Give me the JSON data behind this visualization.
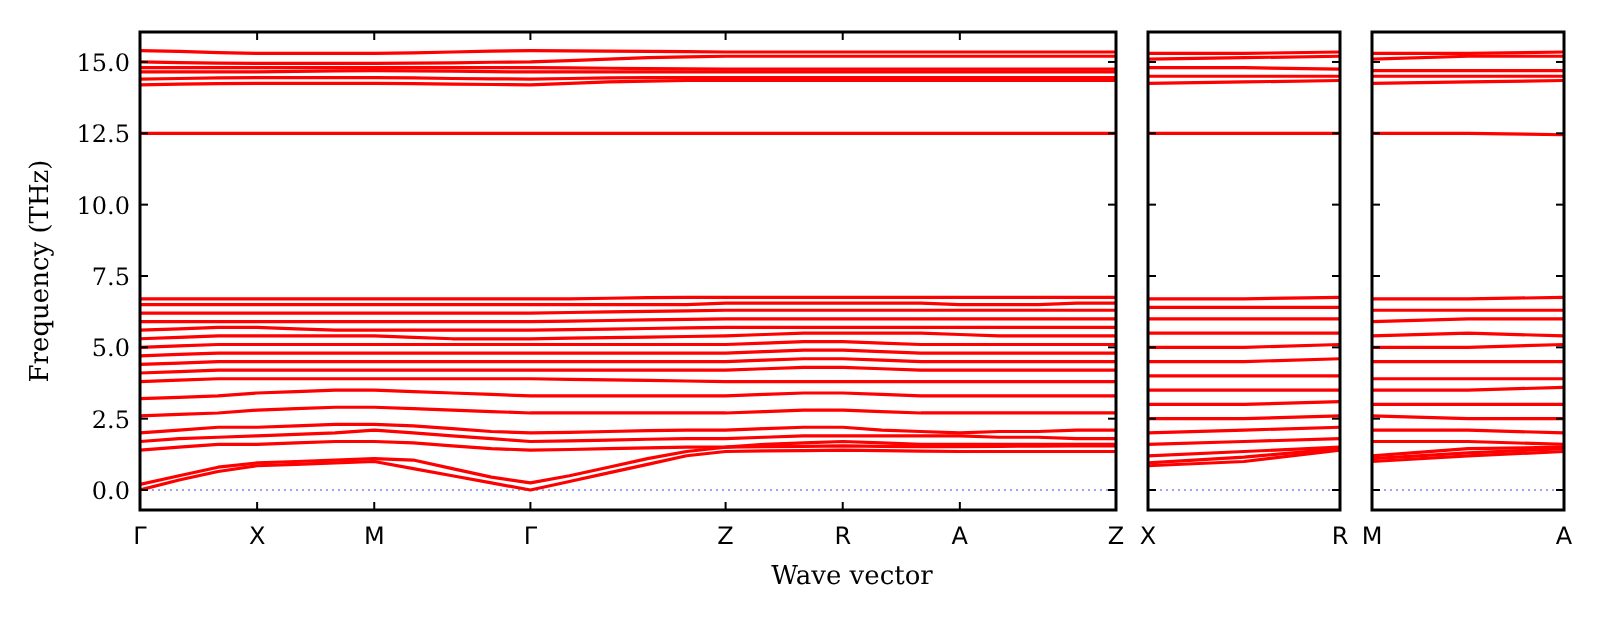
{
  "chart_data": [
    {
      "type": "line",
      "xlabel": "Wave vector",
      "ylabel": "Frequency (THz)",
      "categories": [
        "Γ",
        null,
        null,
        "X",
        null,
        null,
        "M",
        null,
        null,
        null,
        "Γ",
        null,
        null,
        null,
        null,
        "Z",
        null,
        null,
        "R",
        null,
        null,
        "A",
        null,
        null,
        null,
        "Z"
      ],
      "ylim": [
        -0.7,
        16.05
      ],
      "yticks": [
        {
          "value": 0,
          "label": "0.0"
        },
        {
          "value": 2.5,
          "label": "2.5"
        },
        {
          "value": 5,
          "label": "5.0"
        },
        {
          "value": 7.5,
          "label": "7.5"
        },
        {
          "value": 10,
          "label": "10.0"
        },
        {
          "value": 12.5,
          "label": "12.5"
        },
        {
          "value": 15,
          "label": "15.0"
        }
      ],
      "grid": false,
      "line_style": "solid",
      "marker": "none",
      "ref_lines": [
        {
          "axis": "y",
          "value": 0,
          "color": "#8080ff",
          "line_style": "dotted"
        }
      ],
      "series": [
        {
          "color": "#ff0000",
          "values": [
            0,
            0.35,
            0.65,
            0.85,
            0.9,
            0.95,
            1.0,
            0.75,
            0.5,
            0.25,
            0,
            0.3,
            0.6,
            0.9,
            1.2,
            1.35,
            1.37,
            1.38,
            1.4,
            1.38,
            1.36,
            1.35,
            1.35,
            1.35,
            1.35,
            1.35
          ]
        },
        {
          "color": "#ff0000",
          "values": [
            0.2,
            0.5,
            0.8,
            0.95,
            1.0,
            1.05,
            1.1,
            1.05,
            0.75,
            0.45,
            0.25,
            0.5,
            0.8,
            1.1,
            1.35,
            1.5,
            1.52,
            1.53,
            1.55,
            1.53,
            1.52,
            1.52,
            1.53,
            1.54,
            1.55,
            1.55
          ]
        },
        {
          "color": "#ff0000",
          "values": [
            1.4,
            1.5,
            1.6,
            1.6,
            1.65,
            1.7,
            1.7,
            1.65,
            1.55,
            1.45,
            1.4,
            1.42,
            1.45,
            1.48,
            1.5,
            1.5,
            1.6,
            1.65,
            1.7,
            1.65,
            1.6,
            1.6,
            1.6,
            1.6,
            1.6,
            1.6
          ]
        },
        {
          "color": "#ff0000",
          "values": [
            1.7,
            1.8,
            1.85,
            1.9,
            1.95,
            2.0,
            2.1,
            2.0,
            1.9,
            1.8,
            1.7,
            1.72,
            1.75,
            1.78,
            1.8,
            1.8,
            1.85,
            1.9,
            1.9,
            1.9,
            1.9,
            1.9,
            1.85,
            1.85,
            1.8,
            1.8
          ]
        },
        {
          "color": "#ff0000",
          "values": [
            2.0,
            2.1,
            2.2,
            2.2,
            2.25,
            2.3,
            2.3,
            2.25,
            2.15,
            2.05,
            2.0,
            2.02,
            2.05,
            2.08,
            2.1,
            2.1,
            2.15,
            2.2,
            2.2,
            2.1,
            2.05,
            2.0,
            2.05,
            2.05,
            2.1,
            2.1
          ]
        },
        {
          "color": "#ff0000",
          "values": [
            2.6,
            2.65,
            2.7,
            2.8,
            2.85,
            2.9,
            2.9,
            2.85,
            2.8,
            2.75,
            2.7,
            2.7,
            2.7,
            2.7,
            2.7,
            2.7,
            2.75,
            2.8,
            2.8,
            2.75,
            2.7,
            2.7,
            2.7,
            2.7,
            2.7,
            2.7
          ]
        },
        {
          "color": "#ff0000",
          "values": [
            3.2,
            3.25,
            3.3,
            3.4,
            3.45,
            3.5,
            3.5,
            3.45,
            3.4,
            3.35,
            3.3,
            3.3,
            3.3,
            3.3,
            3.3,
            3.3,
            3.35,
            3.4,
            3.4,
            3.35,
            3.3,
            3.3,
            3.3,
            3.3,
            3.3,
            3.3
          ]
        },
        {
          "color": "#ff0000",
          "values": [
            3.8,
            3.85,
            3.9,
            3.9,
            3.9,
            3.9,
            3.9,
            3.9,
            3.9,
            3.9,
            3.9,
            3.88,
            3.86,
            3.84,
            3.82,
            3.8,
            3.8,
            3.8,
            3.8,
            3.8,
            3.8,
            3.8,
            3.8,
            3.8,
            3.8,
            3.8
          ]
        },
        {
          "color": "#ff0000",
          "values": [
            4.1,
            4.15,
            4.2,
            4.2,
            4.2,
            4.2,
            4.2,
            4.2,
            4.2,
            4.2,
            4.2,
            4.2,
            4.2,
            4.2,
            4.2,
            4.2,
            4.25,
            4.3,
            4.3,
            4.25,
            4.2,
            4.2,
            4.2,
            4.2,
            4.2,
            4.2
          ]
        },
        {
          "color": "#ff0000",
          "values": [
            4.4,
            4.45,
            4.5,
            4.5,
            4.5,
            4.5,
            4.5,
            4.5,
            4.5,
            4.5,
            4.5,
            4.5,
            4.5,
            4.5,
            4.5,
            4.5,
            4.55,
            4.6,
            4.6,
            4.55,
            4.5,
            4.5,
            4.5,
            4.5,
            4.5,
            4.5
          ]
        },
        {
          "color": "#ff0000",
          "values": [
            4.7,
            4.75,
            4.8,
            4.8,
            4.8,
            4.8,
            4.8,
            4.8,
            4.8,
            4.8,
            4.8,
            4.8,
            4.8,
            4.8,
            4.8,
            4.8,
            4.85,
            4.9,
            4.9,
            4.85,
            4.8,
            4.8,
            4.8,
            4.8,
            4.8,
            4.8
          ]
        },
        {
          "color": "#ff0000",
          "values": [
            5.0,
            5.05,
            5.1,
            5.1,
            5.1,
            5.1,
            5.1,
            5.1,
            5.1,
            5.1,
            5.1,
            5.1,
            5.1,
            5.1,
            5.1,
            5.1,
            5.15,
            5.2,
            5.2,
            5.15,
            5.1,
            5.1,
            5.1,
            5.1,
            5.1,
            5.1
          ]
        },
        {
          "color": "#ff0000",
          "values": [
            5.3,
            5.35,
            5.4,
            5.4,
            5.4,
            5.4,
            5.4,
            5.35,
            5.3,
            5.3,
            5.3,
            5.32,
            5.34,
            5.36,
            5.38,
            5.4,
            5.45,
            5.5,
            5.5,
            5.5,
            5.5,
            5.45,
            5.4,
            5.4,
            5.4,
            5.4
          ]
        },
        {
          "color": "#ff0000",
          "values": [
            5.6,
            5.65,
            5.7,
            5.7,
            5.65,
            5.6,
            5.6,
            5.6,
            5.6,
            5.6,
            5.6,
            5.62,
            5.64,
            5.66,
            5.68,
            5.7,
            5.7,
            5.7,
            5.7,
            5.7,
            5.7,
            5.7,
            5.7,
            5.7,
            5.7,
            5.7
          ]
        },
        {
          "color": "#ff0000",
          "values": [
            5.9,
            5.9,
            5.9,
            5.9,
            5.9,
            5.9,
            5.9,
            5.9,
            5.9,
            5.9,
            5.9,
            5.92,
            5.94,
            5.96,
            5.98,
            6.0,
            6.0,
            6.0,
            6.0,
            6.0,
            6.0,
            6.0,
            6.0,
            6.0,
            6.0,
            6.0
          ]
        },
        {
          "color": "#ff0000",
          "values": [
            6.2,
            6.2,
            6.2,
            6.2,
            6.2,
            6.2,
            6.2,
            6.2,
            6.2,
            6.2,
            6.2,
            6.22,
            6.24,
            6.26,
            6.28,
            6.3,
            6.3,
            6.3,
            6.3,
            6.3,
            6.3,
            6.3,
            6.3,
            6.3,
            6.3,
            6.3
          ]
        },
        {
          "color": "#ff0000",
          "values": [
            6.5,
            6.5,
            6.5,
            6.5,
            6.5,
            6.5,
            6.5,
            6.5,
            6.5,
            6.5,
            6.5,
            6.5,
            6.5,
            6.5,
            6.5,
            6.55,
            6.55,
            6.55,
            6.55,
            6.55,
            6.55,
            6.5,
            6.5,
            6.5,
            6.55,
            6.55
          ]
        },
        {
          "color": "#ff0000",
          "values": [
            6.7,
            6.7,
            6.7,
            6.7,
            6.7,
            6.7,
            6.7,
            6.7,
            6.7,
            6.7,
            6.7,
            6.7,
            6.72,
            6.74,
            6.75,
            6.75,
            6.75,
            6.75,
            6.75,
            6.75,
            6.75,
            6.75,
            6.75,
            6.75,
            6.75,
            6.75
          ]
        },
        {
          "color": "#ff0000",
          "values": [
            12.5,
            12.5,
            12.5,
            12.5,
            12.5,
            12.5,
            12.5,
            12.5,
            12.5,
            12.5,
            12.5,
            12.5,
            12.5,
            12.5,
            12.5,
            12.5,
            12.5,
            12.5,
            12.5,
            12.5,
            12.5,
            12.5,
            12.5,
            12.5,
            12.5,
            12.5
          ]
        },
        {
          "color": "#ff0000",
          "values": [
            14.2,
            14.22,
            14.24,
            14.25,
            14.25,
            14.25,
            14.25,
            14.24,
            14.22,
            14.21,
            14.2,
            14.25,
            14.3,
            14.33,
            14.35,
            14.35,
            14.35,
            14.35,
            14.35,
            14.35,
            14.35,
            14.35,
            14.35,
            14.35,
            14.35,
            14.35
          ]
        },
        {
          "color": "#ff0000",
          "values": [
            14.4,
            14.42,
            14.44,
            14.45,
            14.45,
            14.45,
            14.45,
            14.44,
            14.42,
            14.41,
            14.4,
            14.42,
            14.44,
            14.45,
            14.45,
            14.45,
            14.45,
            14.45,
            14.45,
            14.45,
            14.45,
            14.45,
            14.45,
            14.45,
            14.45,
            14.45
          ]
        },
        {
          "color": "#ff0000",
          "values": [
            14.65,
            14.65,
            14.65,
            14.65,
            14.67,
            14.69,
            14.7,
            14.69,
            14.68,
            14.66,
            14.65,
            14.65,
            14.65,
            14.65,
            14.65,
            14.65,
            14.65,
            14.65,
            14.65,
            14.65,
            14.65,
            14.65,
            14.65,
            14.65,
            14.65,
            14.65
          ]
        },
        {
          "color": "#ff0000",
          "values": [
            14.8,
            14.8,
            14.8,
            14.8,
            14.8,
            14.8,
            14.8,
            14.8,
            14.8,
            14.8,
            14.8,
            14.79,
            14.78,
            14.77,
            14.76,
            14.75,
            14.75,
            14.75,
            14.75,
            14.75,
            14.75,
            14.75,
            14.75,
            14.75,
            14.75,
            14.75
          ]
        },
        {
          "color": "#ff0000",
          "values": [
            15.0,
            14.98,
            14.96,
            14.95,
            14.95,
            14.95,
            14.95,
            14.96,
            14.97,
            14.99,
            15.0,
            15.05,
            15.1,
            15.15,
            15.18,
            15.2,
            15.2,
            15.2,
            15.2,
            15.2,
            15.2,
            15.2,
            15.2,
            15.2,
            15.2,
            15.2
          ]
        },
        {
          "color": "#ff0000",
          "values": [
            15.4,
            15.37,
            15.33,
            15.3,
            15.3,
            15.3,
            15.3,
            15.32,
            15.35,
            15.38,
            15.4,
            15.39,
            15.38,
            15.37,
            15.36,
            15.35,
            15.35,
            15.35,
            15.35,
            15.35,
            15.35,
            15.35,
            15.35,
            15.35,
            15.35,
            15.35
          ]
        }
      ]
    },
    {
      "type": "line",
      "tick_labels": "x",
      "categories": [
        "X",
        null,
        "R"
      ],
      "ylim": [
        -0.7,
        16.05
      ],
      "yticks": [
        {
          "value": 0,
          "label": null
        },
        {
          "value": 2.5,
          "label": null
        },
        {
          "value": 5,
          "label": null
        },
        {
          "value": 7.5,
          "label": null
        },
        {
          "value": 10,
          "label": null
        },
        {
          "value": 12.5,
          "label": null
        },
        {
          "value": 15,
          "label": null
        }
      ],
      "grid": false,
      "line_style": "solid",
      "marker": "none",
      "ref_lines": [
        {
          "axis": "y",
          "value": 0,
          "color": "#8080ff",
          "line_style": "dotted"
        }
      ],
      "series": [
        {
          "color": "#ff0000",
          "values": [
            0.85,
            1.0,
            1.4
          ]
        },
        {
          "color": "#ff0000",
          "values": [
            0.95,
            1.15,
            1.45
          ]
        },
        {
          "color": "#ff0000",
          "values": [
            1.2,
            1.35,
            1.5
          ]
        },
        {
          "color": "#ff0000",
          "values": [
            1.6,
            1.7,
            1.8
          ]
        },
        {
          "color": "#ff0000",
          "values": [
            2.0,
            2.1,
            2.2
          ]
        },
        {
          "color": "#ff0000",
          "values": [
            2.5,
            2.5,
            2.6
          ]
        },
        {
          "color": "#ff0000",
          "values": [
            3.0,
            3.0,
            3.1
          ]
        },
        {
          "color": "#ff0000",
          "values": [
            3.5,
            3.5,
            3.5
          ]
        },
        {
          "color": "#ff0000",
          "values": [
            4.0,
            4.0,
            4.0
          ]
        },
        {
          "color": "#ff0000",
          "values": [
            4.5,
            4.5,
            4.6
          ]
        },
        {
          "color": "#ff0000",
          "values": [
            5.0,
            5.0,
            5.1
          ]
        },
        {
          "color": "#ff0000",
          "values": [
            5.5,
            5.5,
            5.5
          ]
        },
        {
          "color": "#ff0000",
          "values": [
            6.0,
            6.0,
            6.0
          ]
        },
        {
          "color": "#ff0000",
          "values": [
            6.4,
            6.4,
            6.4
          ]
        },
        {
          "color": "#ff0000",
          "values": [
            6.7,
            6.7,
            6.75
          ]
        },
        {
          "color": "#ff0000",
          "values": [
            12.5,
            12.5,
            12.5
          ]
        },
        {
          "color": "#ff0000",
          "values": [
            14.25,
            14.3,
            14.35
          ]
        },
        {
          "color": "#ff0000",
          "values": [
            14.5,
            14.5,
            14.5
          ]
        },
        {
          "color": "#ff0000",
          "values": [
            14.8,
            14.8,
            14.75
          ]
        },
        {
          "color": "#ff0000",
          "values": [
            15.1,
            15.15,
            15.2
          ]
        },
        {
          "color": "#ff0000",
          "values": [
            15.3,
            15.3,
            15.35
          ]
        }
      ]
    },
    {
      "type": "line",
      "tick_labels": "x",
      "categories": [
        "M",
        null,
        "A"
      ],
      "ylim": [
        -0.7,
        16.05
      ],
      "yticks": [
        {
          "value": 0,
          "label": null
        },
        {
          "value": 2.5,
          "label": null
        },
        {
          "value": 5,
          "label": null
        },
        {
          "value": 7.5,
          "label": null
        },
        {
          "value": 10,
          "label": null
        },
        {
          "value": 12.5,
          "label": null
        },
        {
          "value": 15,
          "label": null
        }
      ],
      "grid": false,
      "line_style": "solid",
      "marker": "none",
      "ref_lines": [
        {
          "axis": "y",
          "value": 0,
          "color": "#8080ff",
          "line_style": "dotted"
        }
      ],
      "series": [
        {
          "color": "#ff0000",
          "values": [
            1.0,
            1.2,
            1.35
          ]
        },
        {
          "color": "#ff0000",
          "values": [
            1.1,
            1.3,
            1.45
          ]
        },
        {
          "color": "#ff0000",
          "values": [
            1.2,
            1.45,
            1.5
          ]
        },
        {
          "color": "#ff0000",
          "values": [
            1.7,
            1.7,
            1.6
          ]
        },
        {
          "color": "#ff0000",
          "values": [
            2.1,
            2.1,
            2.0
          ]
        },
        {
          "color": "#ff0000",
          "values": [
            2.6,
            2.5,
            2.5
          ]
        },
        {
          "color": "#ff0000",
          "values": [
            3.0,
            3.0,
            3.0
          ]
        },
        {
          "color": "#ff0000",
          "values": [
            3.5,
            3.5,
            3.6
          ]
        },
        {
          "color": "#ff0000",
          "values": [
            3.9,
            3.9,
            3.9
          ]
        },
        {
          "color": "#ff0000",
          "values": [
            4.5,
            4.5,
            4.5
          ]
        },
        {
          "color": "#ff0000",
          "values": [
            5.0,
            5.0,
            5.1
          ]
        },
        {
          "color": "#ff0000",
          "values": [
            5.4,
            5.5,
            5.4
          ]
        },
        {
          "color": "#ff0000",
          "values": [
            5.9,
            6.0,
            6.0
          ]
        },
        {
          "color": "#ff0000",
          "values": [
            6.3,
            6.3,
            6.3
          ]
        },
        {
          "color": "#ff0000",
          "values": [
            6.7,
            6.7,
            6.75
          ]
        },
        {
          "color": "#ff0000",
          "values": [
            12.5,
            12.5,
            12.45
          ]
        },
        {
          "color": "#ff0000",
          "values": [
            14.25,
            14.3,
            14.35
          ]
        },
        {
          "color": "#ff0000",
          "values": [
            14.5,
            14.5,
            14.5
          ]
        },
        {
          "color": "#ff0000",
          "values": [
            14.7,
            14.7,
            14.7
          ]
        },
        {
          "color": "#ff0000",
          "values": [
            15.1,
            15.2,
            15.2
          ]
        },
        {
          "color": "#ff0000",
          "values": [
            15.3,
            15.3,
            15.35
          ]
        }
      ]
    }
  ]
}
